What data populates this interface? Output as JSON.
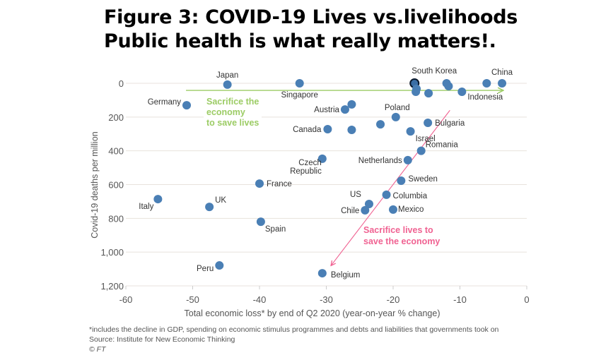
{
  "title_lines": [
    "Figure 3: COVID-19 Lives vs.livelihoods",
    "Public health is what really matters!."
  ],
  "notes": {
    "footnote": "*includes the decline in GDP, spending on economic stimulus programmes and debts and liabilities that governments took on",
    "source": "Source: Institute for New Economic Thinking",
    "credit": "© FT"
  },
  "chart_data": {
    "type": "scatter",
    "xlabel": "Total economic loss* by end of Q2 2020 (year-on-year % change)",
    "ylabel": "Covid-19 deaths per million",
    "xlim": [
      -60,
      0
    ],
    "ylim": [
      0,
      1200
    ],
    "y_inverted": true,
    "xticks": [
      -60,
      -50,
      -40,
      -30,
      -20,
      -10,
      0
    ],
    "xtick_labels": [
      "-60",
      "-50",
      "-40",
      "-30",
      "-20",
      "-10",
      "0"
    ],
    "yticks": [
      0,
      200,
      400,
      600,
      800,
      1000,
      1200
    ],
    "ytick_labels": [
      "0",
      "200",
      "400",
      "600",
      "800",
      "1,000",
      "1,200"
    ],
    "grid": "horizontal",
    "point_color": "#4a7fb5",
    "points": [
      {
        "label": "Japan",
        "x": -44.8,
        "y": 8
      },
      {
        "label": "Singapore",
        "x": -34.0,
        "y": 0
      },
      {
        "label": "South Korea",
        "x": -16.8,
        "y": 0,
        "highlight": true
      },
      {
        "label": "",
        "x": -16.5,
        "y": 33
      },
      {
        "label": "",
        "x": -16.6,
        "y": 50
      },
      {
        "label": "",
        "x": -14.7,
        "y": 59
      },
      {
        "label": "",
        "x": -12.0,
        "y": 0
      },
      {
        "label": "",
        "x": -11.7,
        "y": 17
      },
      {
        "label": "Indonesia",
        "x": -9.7,
        "y": 50
      },
      {
        "label": "",
        "x": -6.0,
        "y": 0
      },
      {
        "label": "China",
        "x": -3.7,
        "y": 0
      },
      {
        "label": "Germany",
        "x": -50.9,
        "y": 130
      },
      {
        "label": "Austria",
        "x": -27.2,
        "y": 155
      },
      {
        "label": "",
        "x": -26.2,
        "y": 125
      },
      {
        "label": "Poland",
        "x": -19.6,
        "y": 200
      },
      {
        "label": "Canada",
        "x": -29.8,
        "y": 272
      },
      {
        "label": "",
        "x": -26.2,
        "y": 276
      },
      {
        "label": "",
        "x": -21.9,
        "y": 243
      },
      {
        "label": "Bulgaria",
        "x": -14.8,
        "y": 234
      },
      {
        "label": "Israel",
        "x": -17.4,
        "y": 285
      },
      {
        "label": "Romania",
        "x": -15.8,
        "y": 400
      },
      {
        "label": "Netherlands",
        "x": -17.8,
        "y": 455
      },
      {
        "label": "Czech Republic",
        "x": -30.6,
        "y": 447
      },
      {
        "label": "France",
        "x": -40.0,
        "y": 594
      },
      {
        "label": "Sweden",
        "x": -18.8,
        "y": 577
      },
      {
        "label": "Columbia",
        "x": -21.0,
        "y": 660
      },
      {
        "label": "US",
        "x": -23.6,
        "y": 715
      },
      {
        "label": "Chile",
        "x": -24.2,
        "y": 752
      },
      {
        "label": "Mexico",
        "x": -20.0,
        "y": 748
      },
      {
        "label": "Italy",
        "x": -55.2,
        "y": 686
      },
      {
        "label": "UK",
        "x": -47.5,
        "y": 732
      },
      {
        "label": "Spain",
        "x": -39.8,
        "y": 820
      },
      {
        "label": "Peru",
        "x": -46.0,
        "y": 1079
      },
      {
        "label": "Belgium",
        "x": -30.6,
        "y": 1125
      }
    ],
    "annotations": [
      {
        "text_lines": [
          "Sacrifice the",
          "economy",
          "to save lives"
        ],
        "color": "#9ccc65",
        "arrow_from": [
          -51,
          42
        ],
        "arrow_to": [
          -3.5,
          42
        ]
      },
      {
        "text_lines": [
          "Sacrifice lives to",
          "save the economy"
        ],
        "color": "#f06292",
        "arrow_from": [
          -11.5,
          160
        ],
        "arrow_to": [
          -29.3,
          1080
        ]
      }
    ]
  }
}
